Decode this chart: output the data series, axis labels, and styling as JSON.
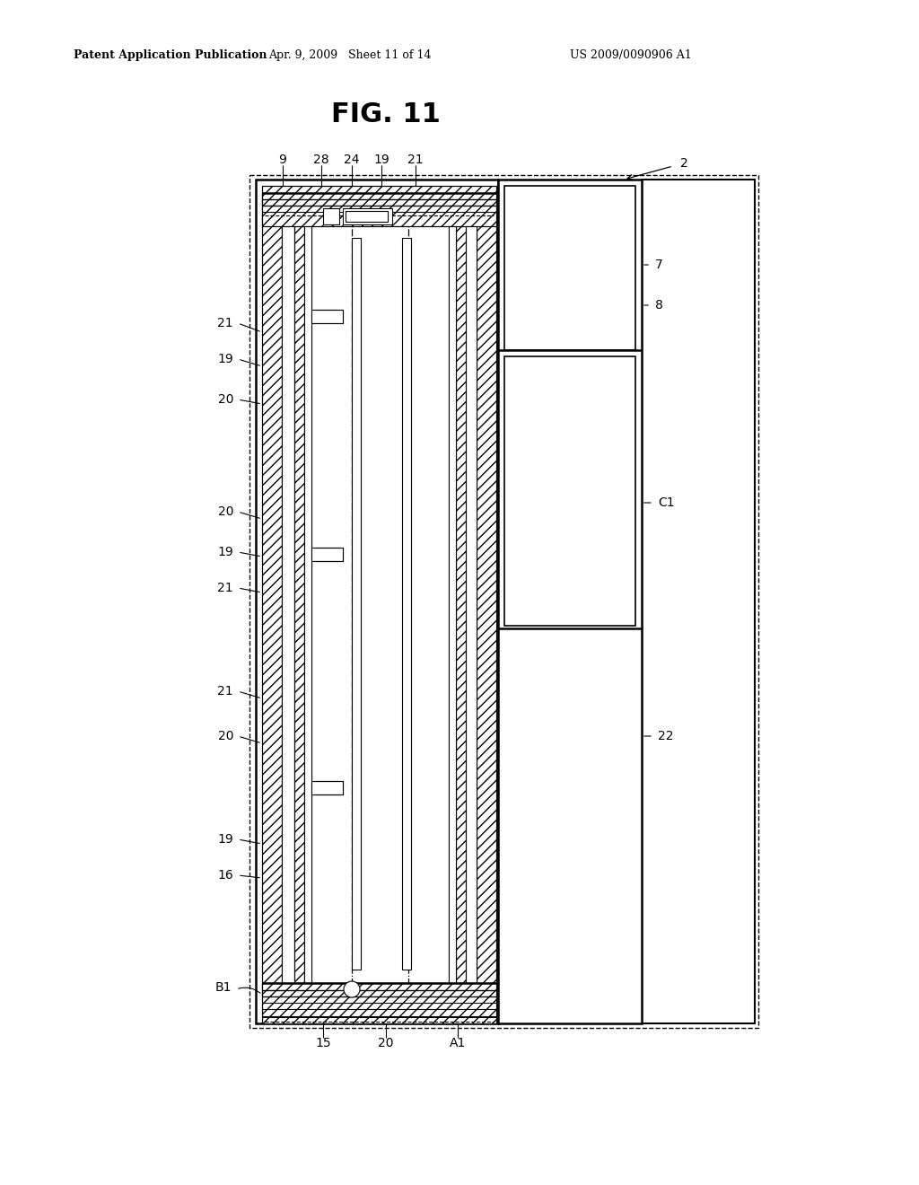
{
  "bg": "#ffffff",
  "lc": "#000000",
  "header_left": "Patent Application Publication",
  "header_mid": "Apr. 9, 2009   Sheet 11 of 14",
  "header_right": "US 2009/0090906 A1",
  "title": "FIG. 11"
}
